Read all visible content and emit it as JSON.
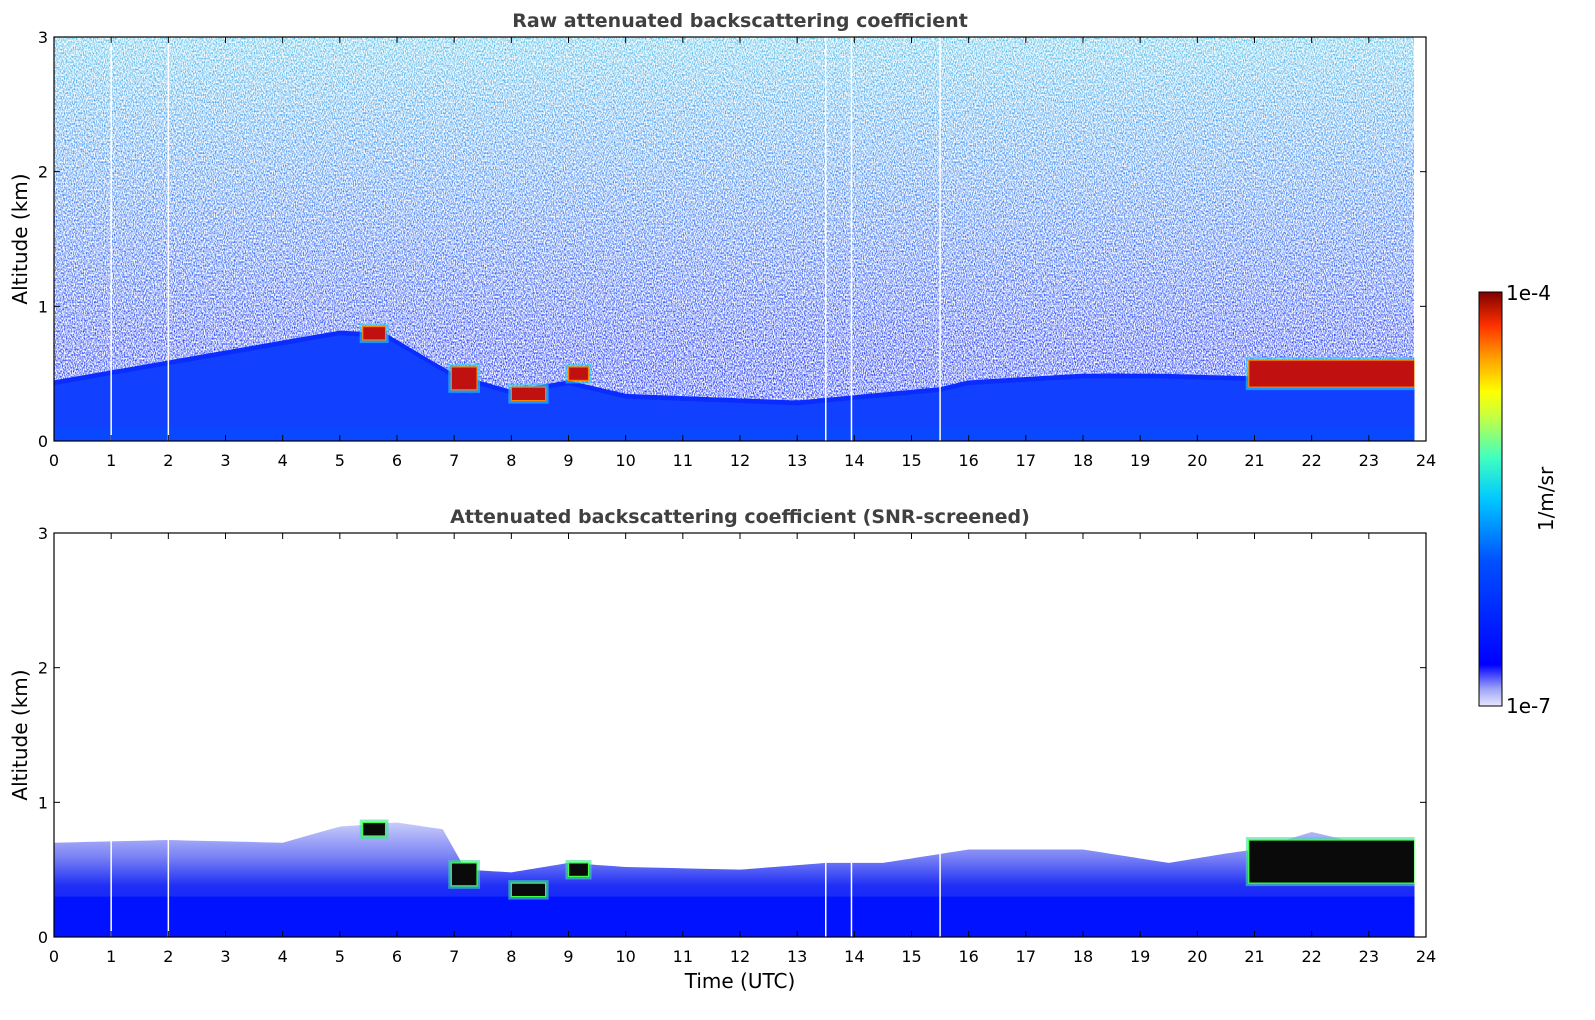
{
  "chart_data": [
    {
      "type": "heatmap",
      "title": "Raw attenuated backscattering coefficient",
      "xlabel": "",
      "ylabel": "Altitude (km)",
      "xlim": [
        0,
        24
      ],
      "ylim": [
        0,
        3
      ],
      "x_ticks": [
        "0",
        "1",
        "2",
        "3",
        "4",
        "5",
        "6",
        "7",
        "8",
        "9",
        "10",
        "11",
        "12",
        "13",
        "14",
        "15",
        "16",
        "17",
        "18",
        "19",
        "20",
        "21",
        "22",
        "23",
        "24"
      ],
      "y_ticks": [
        "0",
        "1",
        "2",
        "3"
      ],
      "data_end_x": 23.8,
      "data_gaps_x": [
        1.0,
        2.0,
        13.5,
        13.95,
        15.5
      ],
      "boundary_layer_top_km": [
        [
          0,
          0.45
        ],
        [
          5.0,
          0.82
        ],
        [
          5.8,
          0.8
        ],
        [
          7.0,
          0.5
        ],
        [
          8.0,
          0.38
        ],
        [
          9.0,
          0.45
        ],
        [
          10,
          0.35
        ],
        [
          13,
          0.3
        ],
        [
          15.5,
          0.4
        ],
        [
          16,
          0.45
        ],
        [
          18,
          0.5
        ],
        [
          19.3,
          0.5
        ],
        [
          21,
          0.48
        ],
        [
          22,
          0.55
        ],
        [
          23.8,
          0.5
        ]
      ],
      "high_backscatter_features": [
        {
          "x0": 5.4,
          "x1": 5.8,
          "y0": 0.75,
          "y1": 0.85
        },
        {
          "x0": 6.95,
          "x1": 7.4,
          "y0": 0.38,
          "y1": 0.55
        },
        {
          "x0": 8.0,
          "x1": 8.6,
          "y0": 0.3,
          "y1": 0.4
        },
        {
          "x0": 9.0,
          "x1": 9.35,
          "y0": 0.45,
          "y1": 0.55
        },
        {
          "x0": 20.9,
          "x1": 23.8,
          "y0": 0.4,
          "y1": 0.6
        }
      ]
    },
    {
      "type": "heatmap",
      "title": "Attenuated backscattering coefficient (SNR-screened)",
      "xlabel": "Time (UTC)",
      "ylabel": "Altitude (km)",
      "xlim": [
        0,
        24
      ],
      "ylim": [
        0,
        3
      ],
      "x_ticks": [
        "0",
        "1",
        "2",
        "3",
        "4",
        "5",
        "6",
        "7",
        "8",
        "9",
        "10",
        "11",
        "12",
        "13",
        "14",
        "15",
        "16",
        "17",
        "18",
        "19",
        "20",
        "21",
        "22",
        "23",
        "24"
      ],
      "y_ticks": [
        "0",
        "1",
        "2",
        "3"
      ],
      "data_end_x": 23.8,
      "data_gaps_x": [
        1.0,
        2.0,
        13.5,
        13.95,
        15.5
      ],
      "screened_layer_top_km": [
        [
          0,
          0.7
        ],
        [
          2,
          0.72
        ],
        [
          4,
          0.7
        ],
        [
          5.0,
          0.82
        ],
        [
          6.0,
          0.85
        ],
        [
          6.8,
          0.8
        ],
        [
          7.2,
          0.5
        ],
        [
          8.0,
          0.48
        ],
        [
          9.0,
          0.55
        ],
        [
          10,
          0.52
        ],
        [
          12,
          0.5
        ],
        [
          13.5,
          0.55
        ],
        [
          14.5,
          0.55
        ],
        [
          16,
          0.65
        ],
        [
          18,
          0.65
        ],
        [
          19.5,
          0.55
        ],
        [
          20.5,
          0.62
        ],
        [
          21,
          0.65
        ],
        [
          22,
          0.78
        ],
        [
          23,
          0.68
        ],
        [
          23.8,
          0.6
        ]
      ],
      "high_backscatter_features": [
        {
          "x0": 5.4,
          "x1": 5.8,
          "y0": 0.75,
          "y1": 0.85
        },
        {
          "x0": 6.95,
          "x1": 7.4,
          "y0": 0.38,
          "y1": 0.55
        },
        {
          "x0": 8.0,
          "x1": 8.6,
          "y0": 0.3,
          "y1": 0.4
        },
        {
          "x0": 9.0,
          "x1": 9.35,
          "y0": 0.45,
          "y1": 0.55
        },
        {
          "x0": 20.9,
          "x1": 23.8,
          "y0": 0.4,
          "y1": 0.72
        }
      ]
    }
  ],
  "colorbar": {
    "label": "1/m/sr",
    "max_label": "1e-4",
    "min_label": "1e-7",
    "scale": "log",
    "range": [
      1e-07,
      0.0001
    ],
    "colormap": [
      "#e6e8ff",
      "#a0a6f8",
      "#0000ff",
      "#0050ff",
      "#00c8ff",
      "#40ffc0",
      "#c8ff40",
      "#ffff00",
      "#ffa000",
      "#ff3000",
      "#a00000",
      "#800000"
    ]
  }
}
